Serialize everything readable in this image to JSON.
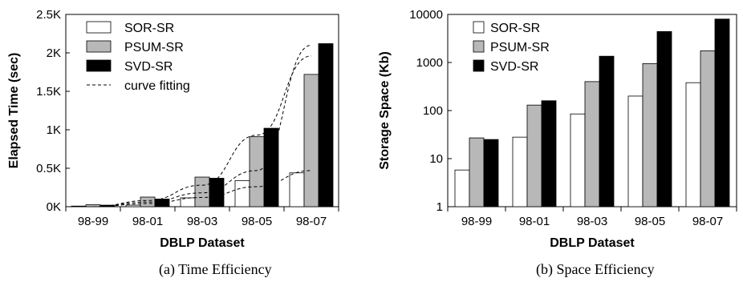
{
  "chart_data": [
    {
      "type": "bar",
      "caption": "(a) Time Efficiency",
      "xlabel": "DBLP Dataset",
      "ylabel": "Elapsed Time (sec)",
      "categories": [
        "98-99",
        "98-01",
        "98-03",
        "98-05",
        "98-07"
      ],
      "yscale": "linear",
      "ylim": [
        0,
        2500
      ],
      "yticks": [
        0,
        500,
        1000,
        1500,
        2000,
        2500
      ],
      "ytick_labels": [
        "0K",
        "0.5K",
        "1K",
        "1.5K",
        "2K",
        "2.5K"
      ],
      "legend_position": "top-left",
      "series": [
        {
          "name": "SOR-SR",
          "values": [
            8,
            20,
            115,
            340,
            440
          ],
          "color": "#ffffff"
        },
        {
          "name": "PSUM-SR",
          "values": [
            25,
            125,
            385,
            910,
            1720
          ],
          "color": "#b8b8b8"
        },
        {
          "name": "SVD-SR",
          "values": [
            20,
            100,
            370,
            1020,
            2120
          ],
          "color": "#000000"
        }
      ],
      "fits": [
        {
          "name": "curve fitting",
          "style": "dashed",
          "values": [
            0,
            60,
            180,
            470,
            2100
          ]
        },
        {
          "style": "dashed",
          "values": [
            0,
            80,
            280,
            930,
            1960
          ]
        },
        {
          "style": "dashed",
          "values": [
            0,
            40,
            120,
            260,
            470
          ]
        }
      ]
    },
    {
      "type": "bar",
      "caption": "(b) Space Efficiency",
      "xlabel": "DBLP Dataset",
      "ylabel": "Storage Space (Kb)",
      "categories": [
        "98-99",
        "98-01",
        "98-03",
        "98-05",
        "98-07"
      ],
      "yscale": "log",
      "ylim": [
        1,
        10000
      ],
      "yticks": [
        1,
        10,
        100,
        1000,
        10000
      ],
      "ytick_labels": [
        "1",
        "10",
        "100",
        "1000",
        "10000"
      ],
      "legend_position": "top-left",
      "series": [
        {
          "name": "SOR-SR",
          "values": [
            5.8,
            28,
            85,
            200,
            380
          ],
          "color": "#ffffff"
        },
        {
          "name": "PSUM-SR",
          "values": [
            27,
            130,
            400,
            950,
            1750
          ],
          "color": "#b8b8b8"
        },
        {
          "name": "SVD-SR",
          "values": [
            25,
            160,
            1350,
            4400,
            8000
          ],
          "color": "#000000"
        }
      ]
    }
  ]
}
